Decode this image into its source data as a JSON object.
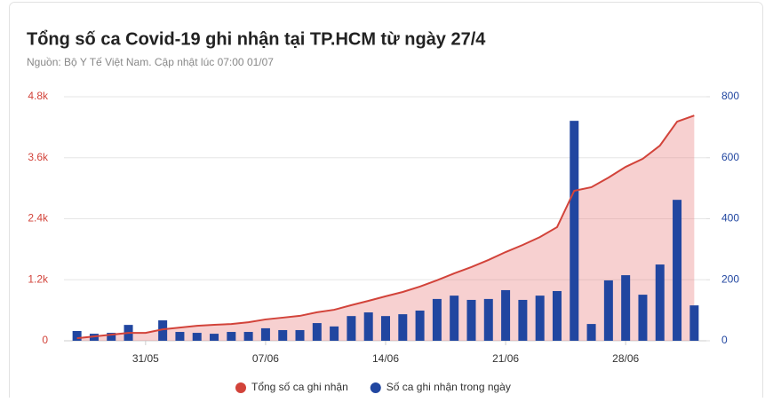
{
  "chart_data": {
    "type": "combo",
    "title": "Tổng số ca Covid-19 ghi nhận tại TP.HCM từ ngày 27/4",
    "subtitle": "Nguồn: Bộ Y Tế Việt Nam. Cập nhật lúc 07:00 01/07",
    "categories": [
      null,
      null,
      null,
      null,
      "31/05",
      null,
      null,
      null,
      null,
      null,
      null,
      "07/06",
      null,
      null,
      null,
      null,
      null,
      null,
      "14/06",
      null,
      null,
      null,
      null,
      null,
      null,
      "21/06",
      null,
      null,
      null,
      null,
      null,
      null,
      "28/06",
      null,
      null,
      null,
      null
    ],
    "series": [
      {
        "name": "Tổng số ca ghi nhận",
        "type": "area",
        "axis": "y",
        "color": "#d2433a",
        "fill": "rgba(232,120,120,0.35)",
        "values": [
          50,
          85,
          120,
          155,
          155,
          225,
          260,
          295,
          315,
          330,
          365,
          420,
          455,
          490,
          560,
          610,
          700,
          785,
          875,
          960,
          1065,
          1190,
          1325,
          1450,
          1590,
          1745,
          1885,
          2040,
          2235,
          2950,
          3020,
          3210,
          3420,
          3580,
          3840,
          4310,
          4430
        ]
      },
      {
        "name": "Số ca ghi nhận trong ngày",
        "type": "bar",
        "axis": "y2",
        "color": "#2146a0",
        "values": [
          32,
          23,
          26,
          52,
          0,
          67,
          29,
          26,
          23,
          29,
          29,
          41,
          35,
          35,
          58,
          47,
          81,
          93,
          81,
          87,
          99,
          137,
          148,
          134,
          137,
          166,
          134,
          148,
          163,
          721,
          55,
          198,
          215,
          151,
          250,
          462,
          116
        ]
      }
    ],
    "ylim": [
      0,
      4800
    ],
    "yticks": [
      0,
      {
        "value": 1200,
        "label": "1.2k"
      },
      {
        "value": 2400,
        "label": "2.4k"
      },
      {
        "value": 3600,
        "label": "3.6k"
      },
      {
        "value": 4800,
        "label": "4.8k"
      }
    ],
    "y2lim": [
      0,
      800
    ],
    "y2ticks": [
      0,
      200,
      400,
      600,
      800
    ],
    "grid": true,
    "legend": "bottom"
  }
}
